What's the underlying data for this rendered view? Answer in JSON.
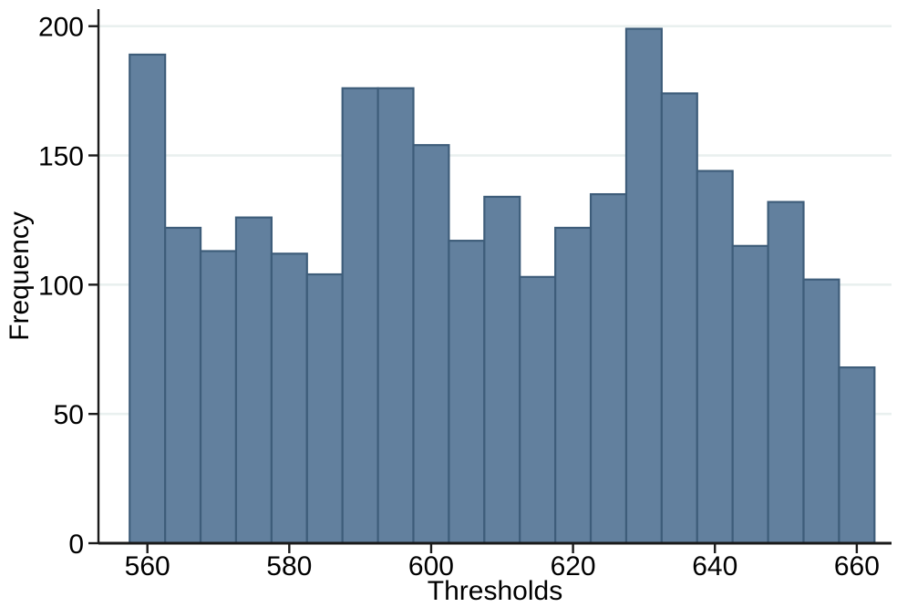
{
  "chart_data": {
    "type": "bar",
    "subtype": "histogram",
    "title": "",
    "xlabel": "Thresholds",
    "ylabel": "Frequency",
    "bin_start": 557.5,
    "bin_width": 5,
    "frequencies": [
      189,
      122,
      113,
      126,
      112,
      104,
      176,
      176,
      154,
      117,
      134,
      103,
      122,
      135,
      199,
      174,
      144,
      115,
      132,
      102,
      68
    ],
    "x_ticks": [
      560,
      580,
      600,
      620,
      640,
      660
    ],
    "y_ticks": [
      0,
      50,
      100,
      150,
      200
    ],
    "xlim": [
      553.1,
      664.9
    ],
    "ylim": [
      0,
      206.6
    ],
    "grid": true,
    "legend": "none",
    "colors": {
      "bar_fill": "#62809e",
      "bar_stroke": "#3e5d7a",
      "grid_line": "#e9f0ef",
      "axis_line": "#1a1a1a",
      "background": "#ffffff"
    }
  }
}
